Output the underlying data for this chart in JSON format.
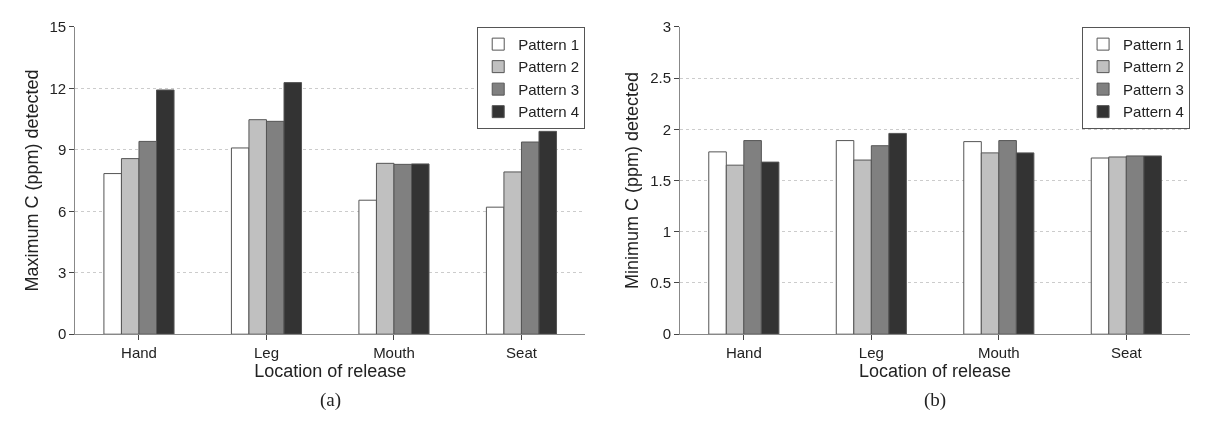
{
  "chart_data": [
    {
      "type": "bar",
      "xlabel": "Location of release",
      "ylabel": "Maximum C (ppm) detected",
      "categories": [
        "Hand",
        "Leg",
        "Mouth",
        "Seat"
      ],
      "ylim": [
        0,
        15
      ],
      "yticks": [
        0,
        3,
        6,
        9,
        12,
        15
      ],
      "grid": "y",
      "legend": "top right",
      "annotations": [
        "(a)"
      ],
      "series": [
        {
          "name": "Pattern 1",
          "color": "#ffffff",
          "values": [
            7.84,
            9.09,
            6.54,
            6.2
          ]
        },
        {
          "name": "Pattern 2",
          "color": "#c0c0c0",
          "values": [
            8.57,
            10.47,
            8.34,
            7.92
          ]
        },
        {
          "name": "Pattern 3",
          "color": "#808080",
          "values": [
            9.41,
            10.39,
            8.29,
            9.38
          ]
        },
        {
          "name": "Pattern 4",
          "color": "#333333",
          "values": [
            11.92,
            12.28,
            8.31,
            9.9
          ]
        }
      ]
    },
    {
      "type": "bar",
      "xlabel": "Location of release",
      "ylabel": "Minimum C (ppm) detected",
      "categories": [
        "Hand",
        "Leg",
        "Mouth",
        "Seat"
      ],
      "ylim": [
        0,
        3
      ],
      "yticks": [
        0,
        0.5,
        1,
        1.5,
        2,
        2.5,
        3
      ],
      "grid": "y",
      "legend": "top right",
      "annotations": [
        "(b)"
      ],
      "series": [
        {
          "name": "Pattern 1",
          "color": "#ffffff",
          "values": [
            1.78,
            1.89,
            1.88,
            1.72
          ]
        },
        {
          "name": "Pattern 2",
          "color": "#c0c0c0",
          "values": [
            1.65,
            1.7,
            1.77,
            1.73
          ]
        },
        {
          "name": "Pattern 3",
          "color": "#808080",
          "values": [
            1.89,
            1.84,
            1.89,
            1.74
          ]
        },
        {
          "name": "Pattern 4",
          "color": "#333333",
          "values": [
            1.68,
            1.96,
            1.77,
            1.74
          ]
        }
      ]
    }
  ]
}
